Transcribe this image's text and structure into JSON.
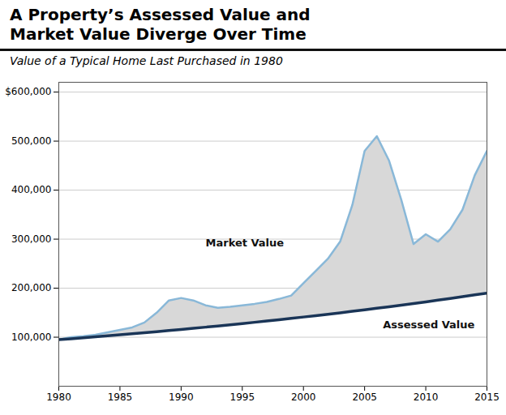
{
  "chart_data": {
    "type": "line",
    "title": [
      "A Property’s Assessed Value and",
      "Market Value Diverge Over Time"
    ],
    "subtitle": "Value of a Typical Home Last Purchased in 1980",
    "x": [
      1980,
      1981,
      1982,
      1983,
      1984,
      1985,
      1986,
      1987,
      1988,
      1989,
      1990,
      1991,
      1992,
      1993,
      1994,
      1995,
      1996,
      1997,
      1998,
      1999,
      2000,
      2001,
      2002,
      2003,
      2004,
      2005,
      2006,
      2007,
      2008,
      2009,
      2010,
      2011,
      2012,
      2013,
      2014,
      2015
    ],
    "series": [
      {
        "name": "Market Value",
        "color": "#89b8d8",
        "values": [
          95000,
          100000,
          102000,
          105000,
          110000,
          115000,
          120000,
          130000,
          150000,
          175000,
          180000,
          175000,
          165000,
          160000,
          162000,
          165000,
          168000,
          172000,
          178000,
          185000,
          210000,
          235000,
          260000,
          295000,
          370000,
          480000,
          510000,
          460000,
          380000,
          290000,
          310000,
          295000,
          320000,
          360000,
          430000,
          480000
        ]
      },
      {
        "name": "Assessed Value",
        "color": "#1a3557",
        "values": [
          95000,
          96900,
          98838,
          100815,
          102831,
          104888,
          106986,
          109125,
          111308,
          113534,
          115805,
          118121,
          120483,
          122893,
          125351,
          127858,
          130415,
          133023,
          135684,
          138397,
          141165,
          143988,
          146868,
          149805,
          152801,
          155857,
          158974,
          162154,
          165397,
          168705,
          172079,
          175521,
          179031,
          182612,
          186264,
          189989
        ]
      }
    ],
    "color": "#d8d8d8",
    "annotations": [
      {
        "text": "Market Value",
        "x": 1992,
        "y": 285000
      },
      {
        "text": "Assessed Value",
        "x": 2006.5,
        "y": 118000
      }
    ],
    "xlim": [
      1980,
      2015
    ],
    "xticks": [
      1980,
      1985,
      1990,
      1995,
      2000,
      2005,
      2010,
      2015
    ],
    "ylim": [
      0,
      620000
    ],
    "yticks": [
      {
        "value": 100000,
        "label": "100,000"
      },
      {
        "value": 200000,
        "label": "200,000"
      },
      {
        "value": 300000,
        "label": "300,000"
      },
      {
        "value": 400000,
        "label": "400,000"
      },
      {
        "value": 500000,
        "label": "500,000"
      },
      {
        "value": 600000,
        "label": "$600,000"
      }
    ],
    "grid": true
  }
}
